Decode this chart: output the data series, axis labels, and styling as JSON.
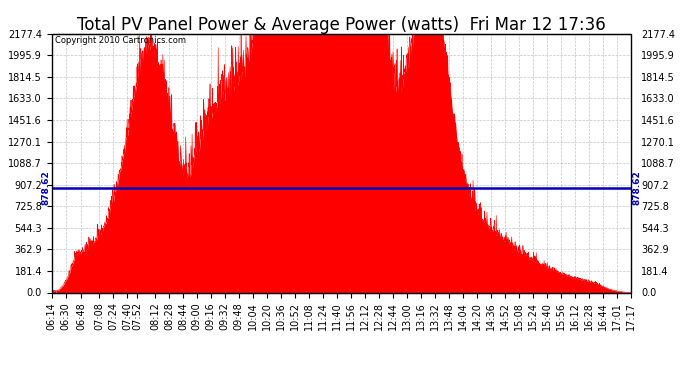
{
  "title": "Total PV Panel Power & Average Power (watts)  Fri Mar 12 17:36",
  "copyright": "Copyright 2010 Cartronics.com",
  "avg_power": 878.62,
  "avg_label": "878.62",
  "ymax": 2177.4,
  "ymin": 0.0,
  "yticks": [
    0.0,
    181.4,
    362.9,
    544.3,
    725.8,
    907.2,
    1088.7,
    1270.1,
    1451.6,
    1633.0,
    1814.5,
    1995.9,
    2177.4
  ],
  "ytick_labels": [
    "0.0",
    "181.4",
    "362.9",
    "544.3",
    "725.8",
    "907.2",
    "1088.7",
    "1270.1",
    "1451.6",
    "1633.0",
    "1814.5",
    "1995.9",
    "2177.4"
  ],
  "xtick_labels": [
    "06:14",
    "06:30",
    "06:48",
    "07:08",
    "07:24",
    "07:40",
    "07:52",
    "08:12",
    "08:28",
    "08:44",
    "09:00",
    "09:16",
    "09:32",
    "09:48",
    "10:04",
    "10:20",
    "10:36",
    "10:52",
    "11:08",
    "11:24",
    "11:40",
    "11:56",
    "12:12",
    "12:28",
    "12:44",
    "13:00",
    "13:16",
    "13:32",
    "13:48",
    "14:04",
    "14:20",
    "14:36",
    "14:52",
    "15:08",
    "15:24",
    "15:40",
    "15:56",
    "16:12",
    "16:28",
    "16:44",
    "17:01",
    "17:17"
  ],
  "fill_color": "#ff0000",
  "avg_line_color": "#0000bb",
  "bg_color": "#ffffff",
  "grid_color": "#aaaaaa",
  "title_fontsize": 12,
  "tick_fontsize": 7,
  "fig_width": 6.9,
  "fig_height": 3.75,
  "dpi": 100
}
